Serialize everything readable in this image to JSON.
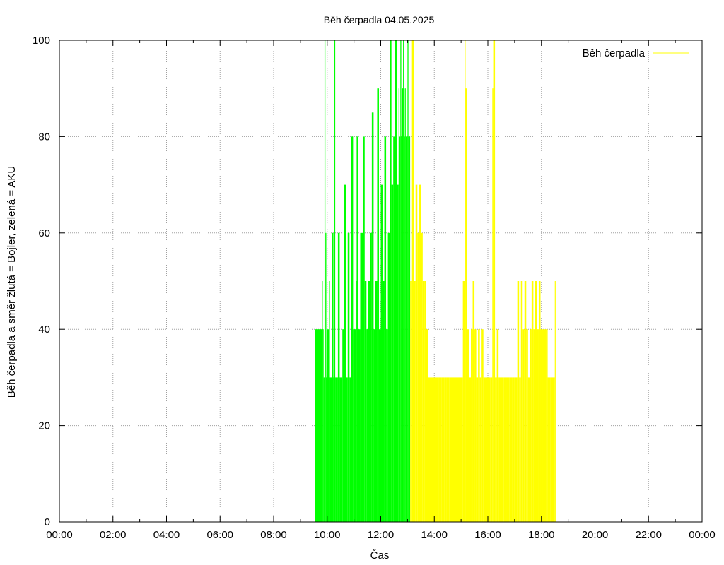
{
  "chart_data": {
    "type": "bar",
    "title": "Běh čerpadla 04.05.2025",
    "xlabel": "Čas",
    "ylabel": "Běh čerpadla a směr žlutá = Bojler, zelená = AKU",
    "xlim_hours": [
      0,
      24
    ],
    "ylim": [
      0,
      100
    ],
    "x_ticks": [
      "00:00",
      "02:00",
      "04:00",
      "06:00",
      "08:00",
      "10:00",
      "12:00",
      "14:00",
      "16:00",
      "18:00",
      "20:00",
      "22:00",
      "00:00"
    ],
    "y_ticks": [
      "0",
      "20",
      "40",
      "60",
      "80",
      "100"
    ],
    "grid": true,
    "legend_position": "top-right",
    "legend": [
      "Běh čerpadla"
    ],
    "colors": {
      "green": "#00ff00",
      "yellow": "#ffff00",
      "grid": "#a0a0a0",
      "axis": "#000000"
    },
    "series": [
      {
        "name": "Běh čerpadla",
        "color": "#00ff00",
        "points": [
          {
            "x": "09:32",
            "y": 40
          },
          {
            "x": "09:48",
            "y": 50
          },
          {
            "x": "09:50",
            "y": 40
          },
          {
            "x": "09:52",
            "y": 30
          },
          {
            "x": "09:54",
            "y": 100
          },
          {
            "x": "09:56",
            "y": 60
          },
          {
            "x": "09:58",
            "y": 30
          },
          {
            "x": "10:00",
            "y": 40
          },
          {
            "x": "10:04",
            "y": 50
          },
          {
            "x": "10:06",
            "y": 30
          },
          {
            "x": "10:10",
            "y": 60
          },
          {
            "x": "10:14",
            "y": 30
          },
          {
            "x": "10:16",
            "y": 100
          },
          {
            "x": "10:18",
            "y": 30
          },
          {
            "x": "10:24",
            "y": 60
          },
          {
            "x": "10:28",
            "y": 30
          },
          {
            "x": "10:34",
            "y": 40
          },
          {
            "x": "10:38",
            "y": 70
          },
          {
            "x": "10:42",
            "y": 30
          },
          {
            "x": "10:46",
            "y": 60
          },
          {
            "x": "10:50",
            "y": 30
          },
          {
            "x": "10:54",
            "y": 80
          },
          {
            "x": "10:58",
            "y": 40
          },
          {
            "x": "11:04",
            "y": 50
          },
          {
            "x": "11:06",
            "y": 80
          },
          {
            "x": "11:10",
            "y": 40
          },
          {
            "x": "11:14",
            "y": 60
          },
          {
            "x": "11:20",
            "y": 80
          },
          {
            "x": "11:24",
            "y": 50
          },
          {
            "x": "11:28",
            "y": 40
          },
          {
            "x": "11:32",
            "y": 50
          },
          {
            "x": "11:36",
            "y": 60
          },
          {
            "x": "11:40",
            "y": 85
          },
          {
            "x": "11:44",
            "y": 40
          },
          {
            "x": "11:48",
            "y": 50
          },
          {
            "x": "11:52",
            "y": 90
          },
          {
            "x": "11:56",
            "y": 40
          },
          {
            "x": "12:00",
            "y": 70
          },
          {
            "x": "12:04",
            "y": 50
          },
          {
            "x": "12:08",
            "y": 80
          },
          {
            "x": "12:12",
            "y": 40
          },
          {
            "x": "12:16",
            "y": 60
          },
          {
            "x": "12:20",
            "y": 100
          },
          {
            "x": "12:24",
            "y": 70
          },
          {
            "x": "12:28",
            "y": 80
          },
          {
            "x": "12:32",
            "y": 100
          },
          {
            "x": "12:36",
            "y": 70
          },
          {
            "x": "12:40",
            "y": 90
          },
          {
            "x": "12:42",
            "y": 80
          },
          {
            "x": "12:44",
            "y": 100
          },
          {
            "x": "12:46",
            "y": 80
          },
          {
            "x": "12:48",
            "y": 90
          },
          {
            "x": "12:50",
            "y": 100
          },
          {
            "x": "12:52",
            "y": 80
          },
          {
            "x": "12:54",
            "y": 90
          },
          {
            "x": "12:56",
            "y": 80
          },
          {
            "x": "12:58",
            "y": 80
          },
          {
            "x": "13:00",
            "y": 100
          },
          {
            "x": "13:02",
            "y": 80
          },
          {
            "x": "13:04",
            "y": 80
          }
        ]
      },
      {
        "name": "",
        "color": "#ffff00",
        "points": [
          {
            "x": "13:06",
            "y": 50
          },
          {
            "x": "13:10",
            "y": 100
          },
          {
            "x": "13:14",
            "y": 50
          },
          {
            "x": "13:18",
            "y": 70
          },
          {
            "x": "13:22",
            "y": 60
          },
          {
            "x": "13:26",
            "y": 70
          },
          {
            "x": "13:30",
            "y": 60
          },
          {
            "x": "13:34",
            "y": 50
          },
          {
            "x": "13:38",
            "y": 50
          },
          {
            "x": "13:42",
            "y": 40
          },
          {
            "x": "13:46",
            "y": 30
          },
          {
            "x": "13:52",
            "y": 30
          },
          {
            "x": "13:58",
            "y": 30
          },
          {
            "x": "14:04",
            "y": 30
          },
          {
            "x": "14:10",
            "y": 30
          },
          {
            "x": "14:16",
            "y": 30
          },
          {
            "x": "14:22",
            "y": 30
          },
          {
            "x": "14:28",
            "y": 30
          },
          {
            "x": "14:34",
            "y": 30
          },
          {
            "x": "14:40",
            "y": 30
          },
          {
            "x": "14:46",
            "y": 30
          },
          {
            "x": "15:04",
            "y": 50
          },
          {
            "x": "15:08",
            "y": 100
          },
          {
            "x": "15:10",
            "y": 90
          },
          {
            "x": "15:14",
            "y": 40
          },
          {
            "x": "15:18",
            "y": 30
          },
          {
            "x": "15:22",
            "y": 40
          },
          {
            "x": "15:26",
            "y": 50
          },
          {
            "x": "15:30",
            "y": 40
          },
          {
            "x": "15:34",
            "y": 30
          },
          {
            "x": "15:38",
            "y": 40
          },
          {
            "x": "15:42",
            "y": 30
          },
          {
            "x": "15:46",
            "y": 40
          },
          {
            "x": "15:50",
            "y": 30
          },
          {
            "x": "16:00",
            "y": 30
          },
          {
            "x": "16:06",
            "y": 30
          },
          {
            "x": "16:10",
            "y": 90
          },
          {
            "x": "16:12",
            "y": 100
          },
          {
            "x": "16:16",
            "y": 30
          },
          {
            "x": "16:20",
            "y": 40
          },
          {
            "x": "16:24",
            "y": 30
          },
          {
            "x": "16:30",
            "y": 30
          },
          {
            "x": "16:36",
            "y": 30
          },
          {
            "x": "16:42",
            "y": 30
          },
          {
            "x": "16:48",
            "y": 30
          },
          {
            "x": "16:54",
            "y": 30
          },
          {
            "x": "17:00",
            "y": 30
          },
          {
            "x": "17:06",
            "y": 50
          },
          {
            "x": "17:10",
            "y": 30
          },
          {
            "x": "17:14",
            "y": 50
          },
          {
            "x": "17:18",
            "y": 40
          },
          {
            "x": "17:22",
            "y": 50
          },
          {
            "x": "17:26",
            "y": 40
          },
          {
            "x": "17:30",
            "y": 30
          },
          {
            "x": "17:34",
            "y": 40
          },
          {
            "x": "17:38",
            "y": 50
          },
          {
            "x": "17:42",
            "y": 40
          },
          {
            "x": "17:46",
            "y": 50
          },
          {
            "x": "17:50",
            "y": 40
          },
          {
            "x": "17:54",
            "y": 50
          },
          {
            "x": "17:58",
            "y": 40
          },
          {
            "x": "18:02",
            "y": 40
          },
          {
            "x": "18:06",
            "y": 40
          },
          {
            "x": "18:10",
            "y": 40
          },
          {
            "x": "18:14",
            "y": 30
          },
          {
            "x": "18:20",
            "y": 30
          },
          {
            "x": "18:30",
            "y": 50
          }
        ]
      }
    ]
  }
}
